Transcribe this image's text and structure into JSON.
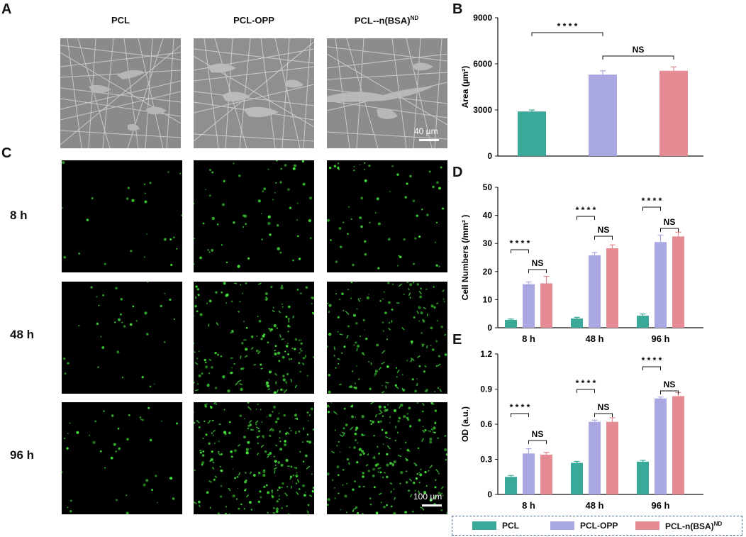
{
  "panels": {
    "A": "A",
    "B": "B",
    "C": "C",
    "D": "D",
    "E": "E"
  },
  "columns": [
    "PCL",
    "PCL-OPP",
    "PCL--n(BSA)"
  ],
  "column_sup": "ND",
  "rows": [
    "8 h",
    "48 h",
    "96 h"
  ],
  "scale_sem": "40 µm",
  "scale_fl": "100 µm",
  "colors": {
    "PCL": "#3aa999",
    "PCL-OPP": "#a9a8e2",
    "PCL-n(BSA)ND": "#e58b94"
  },
  "legend": [
    {
      "label": "PCL",
      "sup": ""
    },
    {
      "label": "PCL-OPP",
      "sup": ""
    },
    {
      "label": "PCL-n(BSA)",
      "sup": "ND"
    }
  ],
  "chart_data": [
    {
      "id": "B",
      "type": "bar",
      "ylabel": "Area (µm²)",
      "ylim": [
        0,
        9000
      ],
      "yticks": [
        0,
        3000,
        6000,
        9000
      ],
      "series": [
        {
          "name": "PCL",
          "value": 2900,
          "err": 100
        },
        {
          "name": "PCL-OPP",
          "value": 5300,
          "err": 250
        },
        {
          "name": "PCL-n(BSA)ND",
          "value": 5550,
          "err": 250
        }
      ],
      "annotations": [
        {
          "text": "* * * *",
          "from": 0,
          "to": 1
        },
        {
          "text": "NS",
          "from": 1,
          "to": 2
        }
      ]
    },
    {
      "id": "D",
      "type": "bar",
      "ylabel": "Cell Numbers (/mm² )",
      "ylim": [
        0,
        50
      ],
      "yticks": [
        0,
        10,
        20,
        30,
        40,
        50
      ],
      "categories": [
        "8 h",
        "48 h",
        "96 h"
      ],
      "series": [
        {
          "name": "PCL",
          "values": [
            2.8,
            3.3,
            4.3
          ],
          "err": [
            0.3,
            0.4,
            0.6
          ]
        },
        {
          "name": "PCL-OPP",
          "values": [
            15.5,
            25.8,
            30.5
          ],
          "err": [
            0.8,
            1.0,
            2.5
          ]
        },
        {
          "name": "PCL-n(BSA)ND",
          "values": [
            15.8,
            28.3,
            32.5
          ],
          "err": [
            2.5,
            1.2,
            1.5
          ]
        }
      ],
      "annotations": [
        {
          "star": "* * * *",
          "ns": "NS"
        }
      ]
    },
    {
      "id": "E",
      "type": "bar",
      "ylabel": "OD (a.u.)",
      "ylim": [
        0,
        1.2
      ],
      "yticks": [
        0,
        0.3,
        0.6,
        0.9,
        1.2
      ],
      "ytick_labels": [
        "0",
        "0.3",
        "0.6",
        "0.9",
        "1.2"
      ],
      "categories": [
        "8 h",
        "48 h",
        "96 h"
      ],
      "series": [
        {
          "name": "PCL",
          "values": [
            0.15,
            0.27,
            0.28
          ],
          "err": [
            0.012,
            0.012,
            0.012
          ]
        },
        {
          "name": "PCL-OPP",
          "values": [
            0.35,
            0.62,
            0.82
          ],
          "err": [
            0.04,
            0.015,
            0.012
          ]
        },
        {
          "name": "PCL-n(BSA)ND",
          "values": [
            0.34,
            0.62,
            0.84
          ],
          "err": [
            0.02,
            0.035,
            0.03
          ]
        }
      ],
      "annotations": [
        {
          "star": "* * * *",
          "ns": "NS"
        }
      ]
    }
  ]
}
